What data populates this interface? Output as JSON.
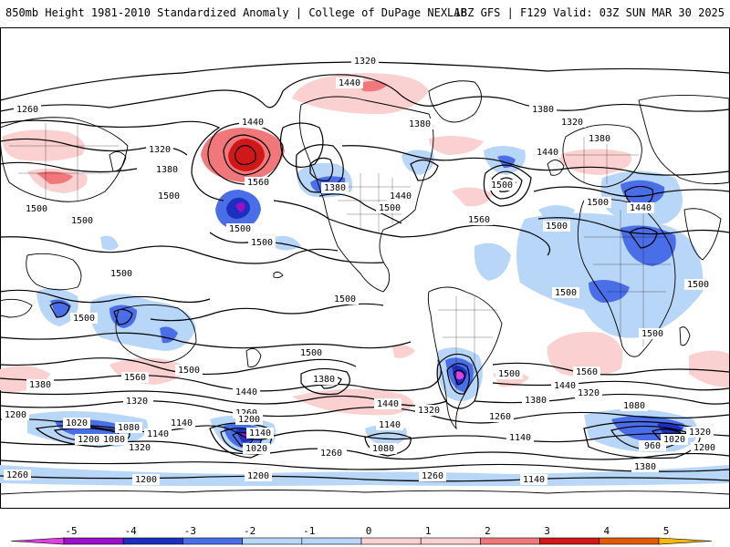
{
  "header": {
    "title": "850mb Height 1981-2010 Standardized Anomaly | College of DuPage NEXLAB",
    "run_info": "18Z GFS | F129 Valid: 03Z SUN MAR 30 2025"
  },
  "colorbar": {
    "ticks": [
      "-5",
      "-4",
      "-3",
      "-2",
      "-1",
      "0",
      "1",
      "2",
      "3",
      "4",
      "5"
    ],
    "colors": [
      "#e040e0",
      "#9a10c8",
      "#1c2fbf",
      "#4a6ee8",
      "#b8d6f8",
      "#ffffff",
      "#fbd0d0",
      "#f0787a",
      "#d01818",
      "#e05a00",
      "#f5b800"
    ]
  },
  "contour_labels": [
    {
      "id": "c1",
      "text": "1320"
    },
    {
      "id": "c2",
      "text": "1440"
    },
    {
      "id": "c3",
      "text": "1260"
    },
    {
      "id": "c4",
      "text": "1380"
    },
    {
      "id": "c5",
      "text": "1320"
    },
    {
      "id": "c6",
      "text": "1440"
    },
    {
      "id": "c7",
      "text": "1320"
    },
    {
      "id": "c8",
      "text": "1380"
    },
    {
      "id": "c9",
      "text": "1380"
    },
    {
      "id": "c10",
      "text": "1560"
    },
    {
      "id": "c11",
      "text": "1380"
    },
    {
      "id": "c12",
      "text": "1500"
    },
    {
      "id": "c13",
      "text": "1500"
    },
    {
      "id": "c14",
      "text": "1500"
    },
    {
      "id": "c15",
      "text": "1500"
    },
    {
      "id": "c16",
      "text": "1440"
    },
    {
      "id": "c17",
      "text": "1500"
    },
    {
      "id": "c18",
      "text": "1560"
    },
    {
      "id": "c19",
      "text": "1500"
    },
    {
      "id": "c20",
      "text": "1380"
    },
    {
      "id": "c21",
      "text": "1440"
    },
    {
      "id": "c22",
      "text": "1440"
    },
    {
      "id": "c23",
      "text": "1500"
    },
    {
      "id": "c24",
      "text": "1500"
    },
    {
      "id": "c25",
      "text": "1500"
    },
    {
      "id": "c26",
      "text": "1500"
    },
    {
      "id": "c27",
      "text": "1500"
    },
    {
      "id": "c28",
      "text": "1500"
    },
    {
      "id": "c29",
      "text": "1500"
    },
    {
      "id": "c30",
      "text": "1500"
    },
    {
      "id": "c31",
      "text": "1500"
    },
    {
      "id": "c32",
      "text": "1560"
    },
    {
      "id": "c33",
      "text": "1500"
    },
    {
      "id": "c34",
      "text": "1500"
    },
    {
      "id": "c35",
      "text": "1380"
    },
    {
      "id": "c36",
      "text": "1320"
    },
    {
      "id": "c37",
      "text": "1440"
    },
    {
      "id": "c38",
      "text": "1380"
    },
    {
      "id": "c39",
      "text": "1440"
    },
    {
      "id": "c40",
      "text": "1500"
    },
    {
      "id": "c41",
      "text": "1560"
    },
    {
      "id": "c42",
      "text": "1440"
    },
    {
      "id": "c43",
      "text": "1320"
    },
    {
      "id": "c44",
      "text": "1380"
    },
    {
      "id": "c45",
      "text": "1200"
    },
    {
      "id": "c46",
      "text": "1320"
    },
    {
      "id": "c47",
      "text": "1260"
    },
    {
      "id": "c48",
      "text": "1200"
    },
    {
      "id": "c49",
      "text": "1320"
    },
    {
      "id": "c50",
      "text": "1260"
    },
    {
      "id": "c51",
      "text": "1140"
    },
    {
      "id": "c52",
      "text": "1020"
    },
    {
      "id": "c53",
      "text": "1080"
    },
    {
      "id": "c54",
      "text": "1140"
    },
    {
      "id": "c55",
      "text": "1200"
    },
    {
      "id": "c56",
      "text": "1080"
    },
    {
      "id": "c57",
      "text": "1140"
    },
    {
      "id": "c58",
      "text": "1020"
    },
    {
      "id": "c59",
      "text": "1320"
    },
    {
      "id": "c60",
      "text": "1140"
    },
    {
      "id": "c61",
      "text": "1080"
    },
    {
      "id": "c62",
      "text": "1140"
    },
    {
      "id": "c63",
      "text": "1140"
    },
    {
      "id": "c64",
      "text": "1080"
    },
    {
      "id": "c65",
      "text": "960"
    },
    {
      "id": "c66",
      "text": "1020"
    },
    {
      "id": "c67",
      "text": "1320"
    },
    {
      "id": "c68",
      "text": "1200"
    },
    {
      "id": "c69",
      "text": "1380"
    },
    {
      "id": "c70",
      "text": "1260"
    },
    {
      "id": "c71",
      "text": "1200"
    },
    {
      "id": "c72",
      "text": "1200"
    },
    {
      "id": "c73",
      "text": "1260"
    },
    {
      "id": "c74",
      "text": "1140"
    },
    {
      "id": "c75",
      "text": "1260"
    }
  ]
}
